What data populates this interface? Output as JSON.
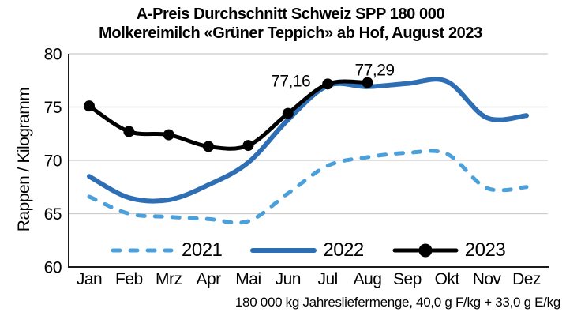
{
  "title": {
    "line1": "A-Preis Durchschnitt Schweiz SPP 180 000",
    "line2": "Molkereimilch «Grüner Teppich» ab Hof, August 2023"
  },
  "footnote": "180 000 kg Jahresliefermenge, 40,0 g F/kg + 33,0 g E/kg",
  "chart_data": {
    "type": "line",
    "title": "A-Preis Durchschnitt Schweiz SPP 180 000 — Molkereimilch «Grüner Teppich» ab Hof, August 2023",
    "xlabel": "",
    "ylabel": "Rappen / Kilogramm",
    "ylim": [
      60,
      80
    ],
    "yticks": [
      60,
      65,
      70,
      75,
      80
    ],
    "grid": "horizontal",
    "legend_position": "bottom-inside",
    "categories": [
      "Jan",
      "Feb",
      "Mrz",
      "Apr",
      "Mai",
      "Jun",
      "Jul",
      "Aug",
      "Sep",
      "Okt",
      "Nov",
      "Dez"
    ],
    "series": [
      {
        "name": "2021",
        "style": "dashed",
        "color": "#4ba0dc",
        "values": [
          66.6,
          65.0,
          64.7,
          64.5,
          64.3,
          66.9,
          69.5,
          70.3,
          70.7,
          70.6,
          67.4,
          67.5
        ]
      },
      {
        "name": "2022",
        "style": "solid",
        "color": "#2e6eb5",
        "values": [
          68.5,
          66.5,
          66.3,
          67.7,
          69.8,
          73.8,
          77.0,
          76.9,
          77.2,
          77.4,
          74.0,
          74.2
        ]
      },
      {
        "name": "2023",
        "style": "solid-markers",
        "color": "#000000",
        "values": [
          75.1,
          72.7,
          72.4,
          71.3,
          71.4,
          74.4,
          77.16,
          77.29,
          null,
          null,
          null,
          null
        ]
      }
    ],
    "annotations": [
      {
        "text": "77,16",
        "series": "2023",
        "category": "Jul",
        "value": 77.16
      },
      {
        "text": "77,29",
        "series": "2023",
        "category": "Aug",
        "value": 77.29
      }
    ],
    "axis_color": "#1a1a1a",
    "gridline_color": "#cccccc"
  }
}
